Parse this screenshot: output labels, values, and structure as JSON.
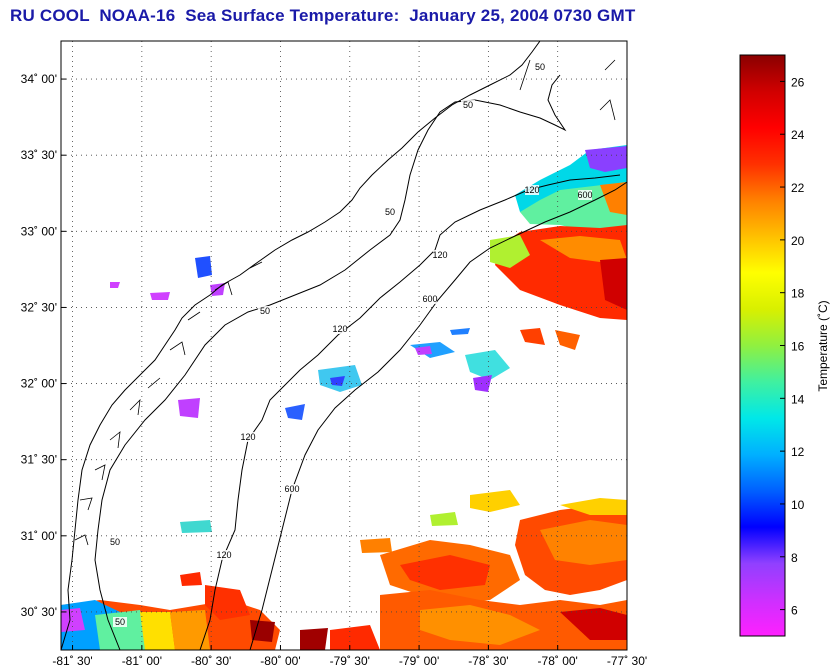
{
  "title": "RU COOL  NOAA-16  Sea Surface Temperature:  January 25, 2004 0730 GMT",
  "map": {
    "lat_ticks": [
      "34˚ 00'",
      "33˚ 30'",
      "33˚ 00'",
      "32˚ 30'",
      "32˚ 00'",
      "31˚ 30'",
      "31˚ 00'",
      "30˚ 30'"
    ],
    "lon_ticks": [
      "-81˚ 30'",
      "-81˚ 00'",
      "-80˚ 30'",
      "-80˚ 00'",
      "-79˚ 30'",
      "-79˚ 00'",
      "-78˚ 30'",
      "-78˚ 00'",
      "-77˚ 30'"
    ],
    "lat_values": [
      34.0,
      33.5,
      33.0,
      32.5,
      32.0,
      31.5,
      31.0,
      30.5
    ],
    "lon_values": [
      -81.5,
      -81.0,
      -80.5,
      -80.0,
      -79.5,
      -79.0,
      -78.5,
      -78.0,
      -77.5
    ],
    "lat_range": [
      30.25,
      34.25
    ],
    "lon_range": [
      -81.5833,
      -77.5
    ],
    "grid": "dotted",
    "isobath_labels": [
      "50",
      "50",
      "50",
      "50",
      "50",
      "50",
      "120",
      "120",
      "120",
      "120",
      "120",
      "600",
      "600",
      "600"
    ]
  },
  "colorbar": {
    "label": "Temperature (˚C)",
    "ticks": [
      "26",
      "24",
      "22",
      "20",
      "18",
      "16",
      "14",
      "12",
      "10",
      "8",
      "6"
    ],
    "tick_values": [
      26,
      24,
      22,
      20,
      18,
      16,
      14,
      12,
      10,
      8,
      6
    ],
    "range": [
      5,
      27
    ],
    "colormap": [
      "#ff20ff",
      "#cc30ff",
      "#9040ff",
      "#0000ff",
      "#0060ff",
      "#00b0ff",
      "#00e8e8",
      "#40f0a0",
      "#90f040",
      "#d8f000",
      "#ffff00",
      "#ffc000",
      "#ff8000",
      "#ff3000",
      "#ff0000",
      "#d00000",
      "#8a0000"
    ]
  }
}
